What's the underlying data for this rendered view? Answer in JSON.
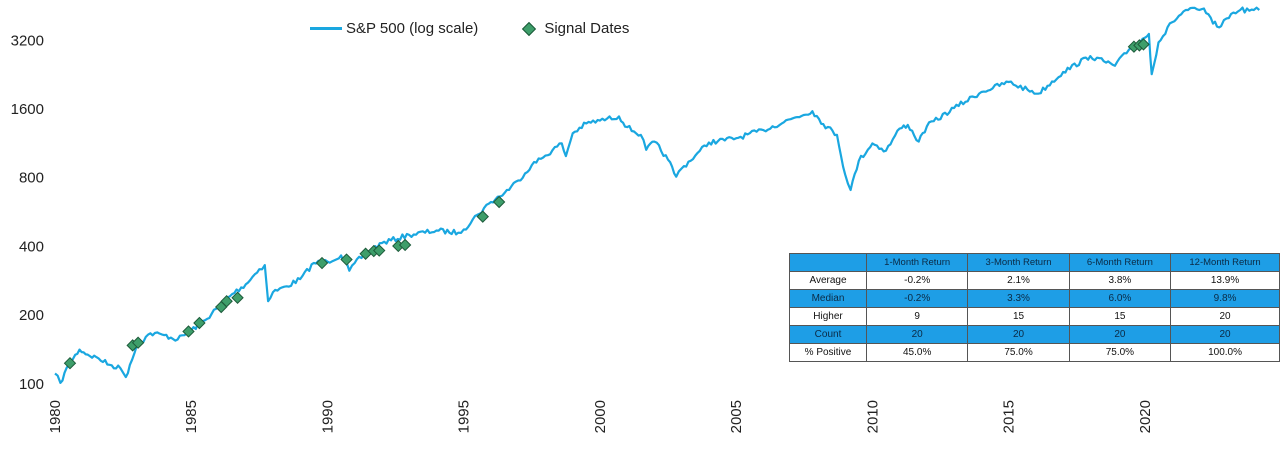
{
  "chart_data": {
    "type": "line",
    "title": "",
    "xlabel": "",
    "ylabel": "",
    "yscale": "log",
    "xlim": [
      1980,
      2024.3
    ],
    "ylim": [
      95,
      4300
    ],
    "y_ticks": [
      100,
      200,
      400,
      800,
      1600,
      3200
    ],
    "x_ticks": [
      1980,
      1985,
      1990,
      1995,
      2000,
      2005,
      2010,
      2015,
      2020
    ],
    "legend_position": "top-center",
    "series": [
      {
        "name": "S&P 500 (log scale)",
        "color": "#1aa7e0",
        "points": [
          [
            1980.0,
            110
          ],
          [
            1980.2,
            100
          ],
          [
            1980.5,
            120
          ],
          [
            1980.9,
            140
          ],
          [
            1981.2,
            133
          ],
          [
            1981.6,
            128
          ],
          [
            1982.0,
            120
          ],
          [
            1982.4,
            116
          ],
          [
            1982.6,
            106
          ],
          [
            1982.75,
            120
          ],
          [
            1983.0,
            145
          ],
          [
            1983.5,
            165
          ],
          [
            1984.0,
            162
          ],
          [
            1984.5,
            155
          ],
          [
            1985.0,
            170
          ],
          [
            1985.5,
            188
          ],
          [
            1986.0,
            215
          ],
          [
            1986.5,
            245
          ],
          [
            1987.0,
            270
          ],
          [
            1987.5,
            315
          ],
          [
            1987.7,
            328
          ],
          [
            1987.82,
            228
          ],
          [
            1988.0,
            250
          ],
          [
            1988.5,
            265
          ],
          [
            1989.0,
            285
          ],
          [
            1989.5,
            335
          ],
          [
            1990.0,
            340
          ],
          [
            1990.5,
            362
          ],
          [
            1990.8,
            310
          ],
          [
            1991.0,
            335
          ],
          [
            1991.5,
            375
          ],
          [
            1992.0,
            410
          ],
          [
            1993.0,
            445
          ],
          [
            1994.0,
            465
          ],
          [
            1994.8,
            455
          ],
          [
            1995.0,
            470
          ],
          [
            1995.5,
            545
          ],
          [
            1996.0,
            620
          ],
          [
            1996.5,
            680
          ],
          [
            1997.0,
            770
          ],
          [
            1997.5,
            900
          ],
          [
            1998.0,
            990
          ],
          [
            1998.6,
            1120
          ],
          [
            1998.75,
            985
          ],
          [
            1999.0,
            1240
          ],
          [
            1999.5,
            1370
          ],
          [
            2000.0,
            1410
          ],
          [
            2000.7,
            1470
          ],
          [
            2001.0,
            1320
          ],
          [
            2001.5,
            1220
          ],
          [
            2001.7,
            1050
          ],
          [
            2002.0,
            1140
          ],
          [
            2002.5,
            950
          ],
          [
            2002.8,
            800
          ],
          [
            2003.0,
            870
          ],
          [
            2003.5,
            990
          ],
          [
            2004.0,
            1130
          ],
          [
            2005.0,
            1180
          ],
          [
            2006.0,
            1280
          ],
          [
            2007.0,
            1430
          ],
          [
            2007.8,
            1550
          ],
          [
            2008.2,
            1360
          ],
          [
            2008.7,
            1220
          ],
          [
            2009.0,
            820
          ],
          [
            2009.2,
            700
          ],
          [
            2009.5,
            940
          ],
          [
            2010.0,
            1120
          ],
          [
            2010.5,
            1040
          ],
          [
            2011.0,
            1300
          ],
          [
            2011.3,
            1350
          ],
          [
            2011.7,
            1140
          ],
          [
            2012.0,
            1330
          ],
          [
            2013.0,
            1600
          ],
          [
            2014.0,
            1880
          ],
          [
            2015.0,
            2080
          ],
          [
            2015.7,
            1920
          ],
          [
            2016.1,
            1850
          ],
          [
            2017.0,
            2300
          ],
          [
            2018.0,
            2700
          ],
          [
            2018.9,
            2450
          ],
          [
            2019.5,
            2950
          ],
          [
            2020.0,
            3250
          ],
          [
            2020.15,
            3380
          ],
          [
            2020.25,
            2250
          ],
          [
            2020.5,
            3100
          ],
          [
            2021.0,
            3800
          ],
          [
            2021.5,
            4300
          ],
          [
            2022.0,
            4700
          ],
          [
            2022.5,
            3750
          ],
          [
            2022.8,
            3650
          ],
          [
            2023.0,
            3950
          ],
          [
            2023.5,
            4400
          ],
          [
            2024.0,
            4850
          ],
          [
            2024.2,
            5050
          ]
        ]
      },
      {
        "name": "Signal Dates",
        "color": "#3e9e6a",
        "points": [
          [
            1980.55,
            122
          ],
          [
            1982.85,
            146
          ],
          [
            1983.05,
            150
          ],
          [
            1984.9,
            168
          ],
          [
            1985.3,
            183
          ],
          [
            1986.1,
            215
          ],
          [
            1986.3,
            228
          ],
          [
            1986.7,
            236
          ],
          [
            1989.8,
            335
          ],
          [
            1990.7,
            347
          ],
          [
            1991.4,
            368
          ],
          [
            1991.7,
            378
          ],
          [
            1991.9,
            380
          ],
          [
            1992.6,
            398
          ],
          [
            1992.85,
            402
          ],
          [
            1995.7,
            535
          ],
          [
            1996.3,
            620
          ],
          [
            2019.6,
            2970
          ],
          [
            2019.8,
            3010
          ],
          [
            2019.95,
            3040
          ]
        ]
      }
    ]
  },
  "stats_table": {
    "headers": [
      "",
      "1-Month Return",
      "3-Month Return",
      "6-Month Return",
      "12-Month Return"
    ],
    "rows": [
      [
        "Average",
        "-0.2%",
        "2.1%",
        "3.8%",
        "13.9%"
      ],
      [
        "Median",
        "-0.2%",
        "3.3%",
        "6.0%",
        "9.8%"
      ],
      [
        "Higher",
        "9",
        "15",
        "15",
        "20"
      ],
      [
        "Count",
        "20",
        "20",
        "20",
        "20"
      ],
      [
        "% Positive",
        "45.0%",
        "75.0%",
        "75.0%",
        "100.0%"
      ]
    ]
  }
}
